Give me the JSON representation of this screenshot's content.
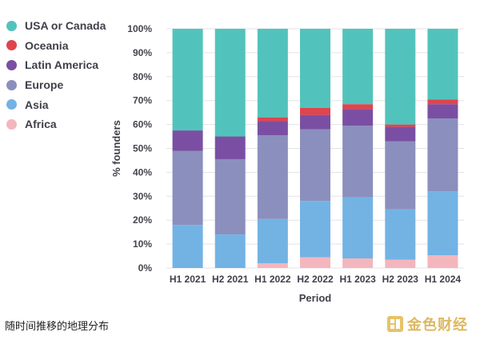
{
  "chart_data": {
    "type": "bar",
    "stacked": true,
    "categories": [
      "H1 2021",
      "H2 2021",
      "H1 2022",
      "H2 2022",
      "H1 2023",
      "H2 2023",
      "H1 2024"
    ],
    "xlabel": "Period",
    "ylabel": "% founders",
    "ylim": [
      0,
      100
    ],
    "yticks": [
      "0%",
      "10%",
      "20%",
      "30%",
      "40%",
      "50%",
      "60%",
      "70%",
      "80%",
      "90%",
      "100%"
    ],
    "legend_position": "left",
    "series": [
      {
        "name": "Africa",
        "color": "#f4b6bd",
        "values": [
          0,
          0,
          2,
          4.5,
          4,
          3.5,
          5.3
        ]
      },
      {
        "name": "Asia",
        "color": "#72b3e4",
        "values": [
          18,
          14,
          18.5,
          23.5,
          25.5,
          21,
          26.7
        ]
      },
      {
        "name": "Europe",
        "color": "#8b8fbd",
        "values": [
          31,
          31.5,
          35,
          30,
          30,
          28.5,
          30.5
        ]
      },
      {
        "name": "Latin America",
        "color": "#7a4fa3",
        "values": [
          8.5,
          9.5,
          6,
          6,
          7,
          6,
          6
        ]
      },
      {
        "name": "Oceania",
        "color": "#e0444d",
        "values": [
          0,
          0,
          1.5,
          3,
          2,
          1,
          2
        ]
      },
      {
        "name": "USA or Canada",
        "color": "#52c3bc",
        "values": [
          42.5,
          45,
          37,
          33,
          31.5,
          40,
          29.5
        ]
      }
    ]
  },
  "legend": {
    "items": [
      {
        "label": "USA or Canada",
        "color": "#52c3bc"
      },
      {
        "label": "Oceania",
        "color": "#e0444d"
      },
      {
        "label": "Latin America",
        "color": "#7a4fa3"
      },
      {
        "label": "Europe",
        "color": "#8b8fbd"
      },
      {
        "label": "Asia",
        "color": "#72b3e4"
      },
      {
        "label": "Africa",
        "color": "#f4b6bd"
      }
    ]
  },
  "caption": "随时间推移的地理分布",
  "watermark": {
    "text": "金色财经",
    "color": "#d4a73a"
  }
}
